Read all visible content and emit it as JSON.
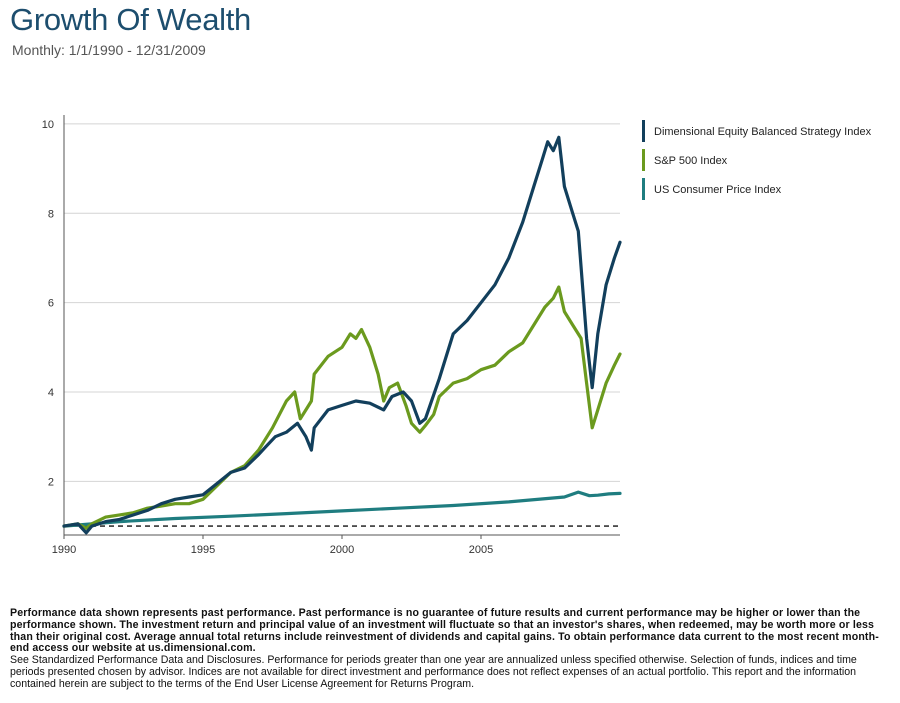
{
  "header": {
    "title": "Growth Of Wealth",
    "subtitle": "Monthly: 1/1/1990 - 12/31/2009"
  },
  "chart_data": {
    "type": "line",
    "title": "Growth Of Wealth",
    "subtitle": "Monthly: 1/1/1990 - 12/31/2009",
    "xlabel": "",
    "ylabel": "",
    "xlim": [
      1990,
      2010
    ],
    "ylim": [
      0.8,
      10.2
    ],
    "x_ticks": [
      1990,
      1995,
      2000,
      2005
    ],
    "y_ticks": [
      2,
      4,
      6,
      8,
      10
    ],
    "grid": true,
    "legend_position": "right",
    "baseline": 1,
    "series": [
      {
        "name": "Dimensional Equity Balanced Strategy Index",
        "color": "#123f5c",
        "x": [
          1990.0,
          1990.5,
          1990.8,
          1991.0,
          1991.5,
          1992.0,
          1992.5,
          1993.0,
          1993.5,
          1994.0,
          1994.5,
          1995.0,
          1995.5,
          1996.0,
          1996.5,
          1997.0,
          1997.3,
          1997.6,
          1998.0,
          1998.4,
          1998.7,
          1998.9,
          1999.0,
          1999.5,
          2000.0,
          2000.5,
          2001.0,
          2001.5,
          2001.8,
          2002.2,
          2002.5,
          2002.8,
          2003.0,
          2003.5,
          2004.0,
          2004.5,
          2005.0,
          2005.5,
          2006.0,
          2006.5,
          2006.9,
          2007.2,
          2007.4,
          2007.6,
          2007.8,
          2008.0,
          2008.3,
          2008.5,
          2008.8,
          2009.0,
          2009.2,
          2009.5,
          2009.8,
          2010.0
        ],
        "values": [
          1.0,
          1.05,
          0.85,
          1.0,
          1.1,
          1.15,
          1.25,
          1.35,
          1.5,
          1.6,
          1.65,
          1.7,
          1.95,
          2.2,
          2.3,
          2.6,
          2.8,
          3.0,
          3.1,
          3.3,
          3.0,
          2.7,
          3.2,
          3.6,
          3.7,
          3.8,
          3.75,
          3.6,
          3.9,
          4.0,
          3.8,
          3.3,
          3.4,
          4.3,
          5.3,
          5.6,
          6.0,
          6.4,
          7.0,
          7.8,
          8.6,
          9.2,
          9.6,
          9.4,
          9.7,
          8.6,
          8.0,
          7.6,
          5.2,
          4.1,
          5.3,
          6.4,
          7.0,
          7.35
        ]
      },
      {
        "name": "S&P 500 Index",
        "color": "#6b9a1e",
        "x": [
          1990.0,
          1990.5,
          1990.8,
          1991.0,
          1991.5,
          1992.0,
          1992.5,
          1993.0,
          1993.5,
          1994.0,
          1994.5,
          1995.0,
          1995.5,
          1996.0,
          1996.5,
          1997.0,
          1997.5,
          1998.0,
          1998.3,
          1998.5,
          1998.7,
          1998.9,
          1999.0,
          1999.5,
          2000.0,
          2000.3,
          2000.5,
          2000.7,
          2001.0,
          2001.3,
          2001.5,
          2001.7,
          2002.0,
          2002.3,
          2002.5,
          2002.8,
          2003.0,
          2003.3,
          2003.5,
          2004.0,
          2004.5,
          2005.0,
          2005.5,
          2006.0,
          2006.5,
          2007.0,
          2007.3,
          2007.6,
          2007.8,
          2008.0,
          2008.3,
          2008.6,
          2008.8,
          2009.0,
          2009.2,
          2009.5,
          2009.8,
          2010.0
        ],
        "values": [
          1.0,
          1.05,
          0.95,
          1.05,
          1.2,
          1.25,
          1.3,
          1.4,
          1.45,
          1.5,
          1.5,
          1.6,
          1.9,
          2.2,
          2.35,
          2.7,
          3.2,
          3.8,
          4.0,
          3.4,
          3.6,
          3.8,
          4.4,
          4.8,
          5.0,
          5.3,
          5.2,
          5.4,
          5.0,
          4.4,
          3.8,
          4.1,
          4.2,
          3.7,
          3.3,
          3.1,
          3.25,
          3.5,
          3.9,
          4.2,
          4.3,
          4.5,
          4.6,
          4.9,
          5.1,
          5.6,
          5.9,
          6.1,
          6.35,
          5.8,
          5.5,
          5.2,
          4.2,
          3.2,
          3.6,
          4.2,
          4.6,
          4.85
        ]
      },
      {
        "name": "US Consumer Price Index",
        "color": "#1f7d80",
        "x": [
          1990.0,
          1992.0,
          1994.0,
          1996.0,
          1998.0,
          2000.0,
          2002.0,
          2004.0,
          2006.0,
          2008.0,
          2008.5,
          2008.9,
          2009.2,
          2009.6,
          2010.0
        ],
        "values": [
          1.0,
          1.1,
          1.17,
          1.22,
          1.28,
          1.34,
          1.4,
          1.46,
          1.54,
          1.65,
          1.76,
          1.68,
          1.69,
          1.72,
          1.73
        ]
      }
    ]
  },
  "footer": {
    "disclaimer_bold": "Performance data shown represents past performance. Past performance is no guarantee of future results and current performance may be higher or lower than the performance shown. The investment return and principal value of an investment will fluctuate so that an investor's shares, when redeemed, may be worth more or less than their original cost. Average annual total returns include reinvestment of dividends and capital gains. To obtain performance data current to the most recent month-end access our website at us.dimensional.com.",
    "disclaimer_normal": "See Standardized Performance Data and Disclosures. Performance for periods greater than one year are annualized unless specified otherwise. Selection of funds, indices and time periods presented chosen by advisor. Indices are not available for direct investment and performance does not reflect expenses of an actual portfolio. This report and the information contained herein are subject to the terms of the End User License Agreement for Returns Program."
  }
}
